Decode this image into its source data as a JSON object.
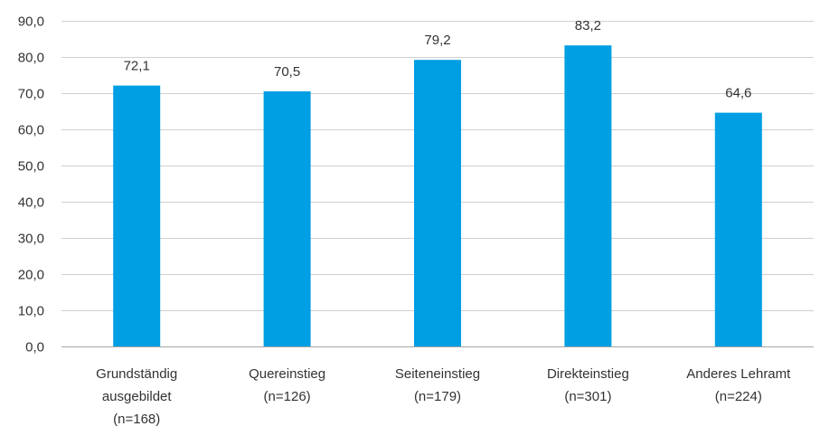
{
  "chart_data": {
    "type": "bar",
    "title": "",
    "xlabel": "",
    "ylabel": "",
    "categories": [
      [
        "Grundständig",
        "ausgebildet",
        "(n=168)"
      ],
      [
        "Quereinstieg",
        "(n=126)"
      ],
      [
        "Seiteneinstieg",
        "(n=179)"
      ],
      [
        "Direkteinstieg",
        "(n=301)"
      ],
      [
        "Anderes Lehramt",
        "(n=224)"
      ]
    ],
    "values": [
      72.1,
      70.5,
      79.2,
      83.2,
      64.6
    ],
    "value_labels": [
      "72,1",
      "70,5",
      "79,2",
      "83,2",
      "64,6"
    ],
    "yticks": [
      0,
      10,
      20,
      30,
      40,
      50,
      60,
      70,
      80,
      90
    ],
    "ytick_labels": [
      "0,0",
      "10,0",
      "20,0",
      "30,0",
      "40,0",
      "50,0",
      "60,0",
      "70,0",
      "80,0",
      "90,0"
    ],
    "ylim": [
      0,
      90
    ],
    "grid": true,
    "legend": "none",
    "bar_color": "#009ee3"
  }
}
